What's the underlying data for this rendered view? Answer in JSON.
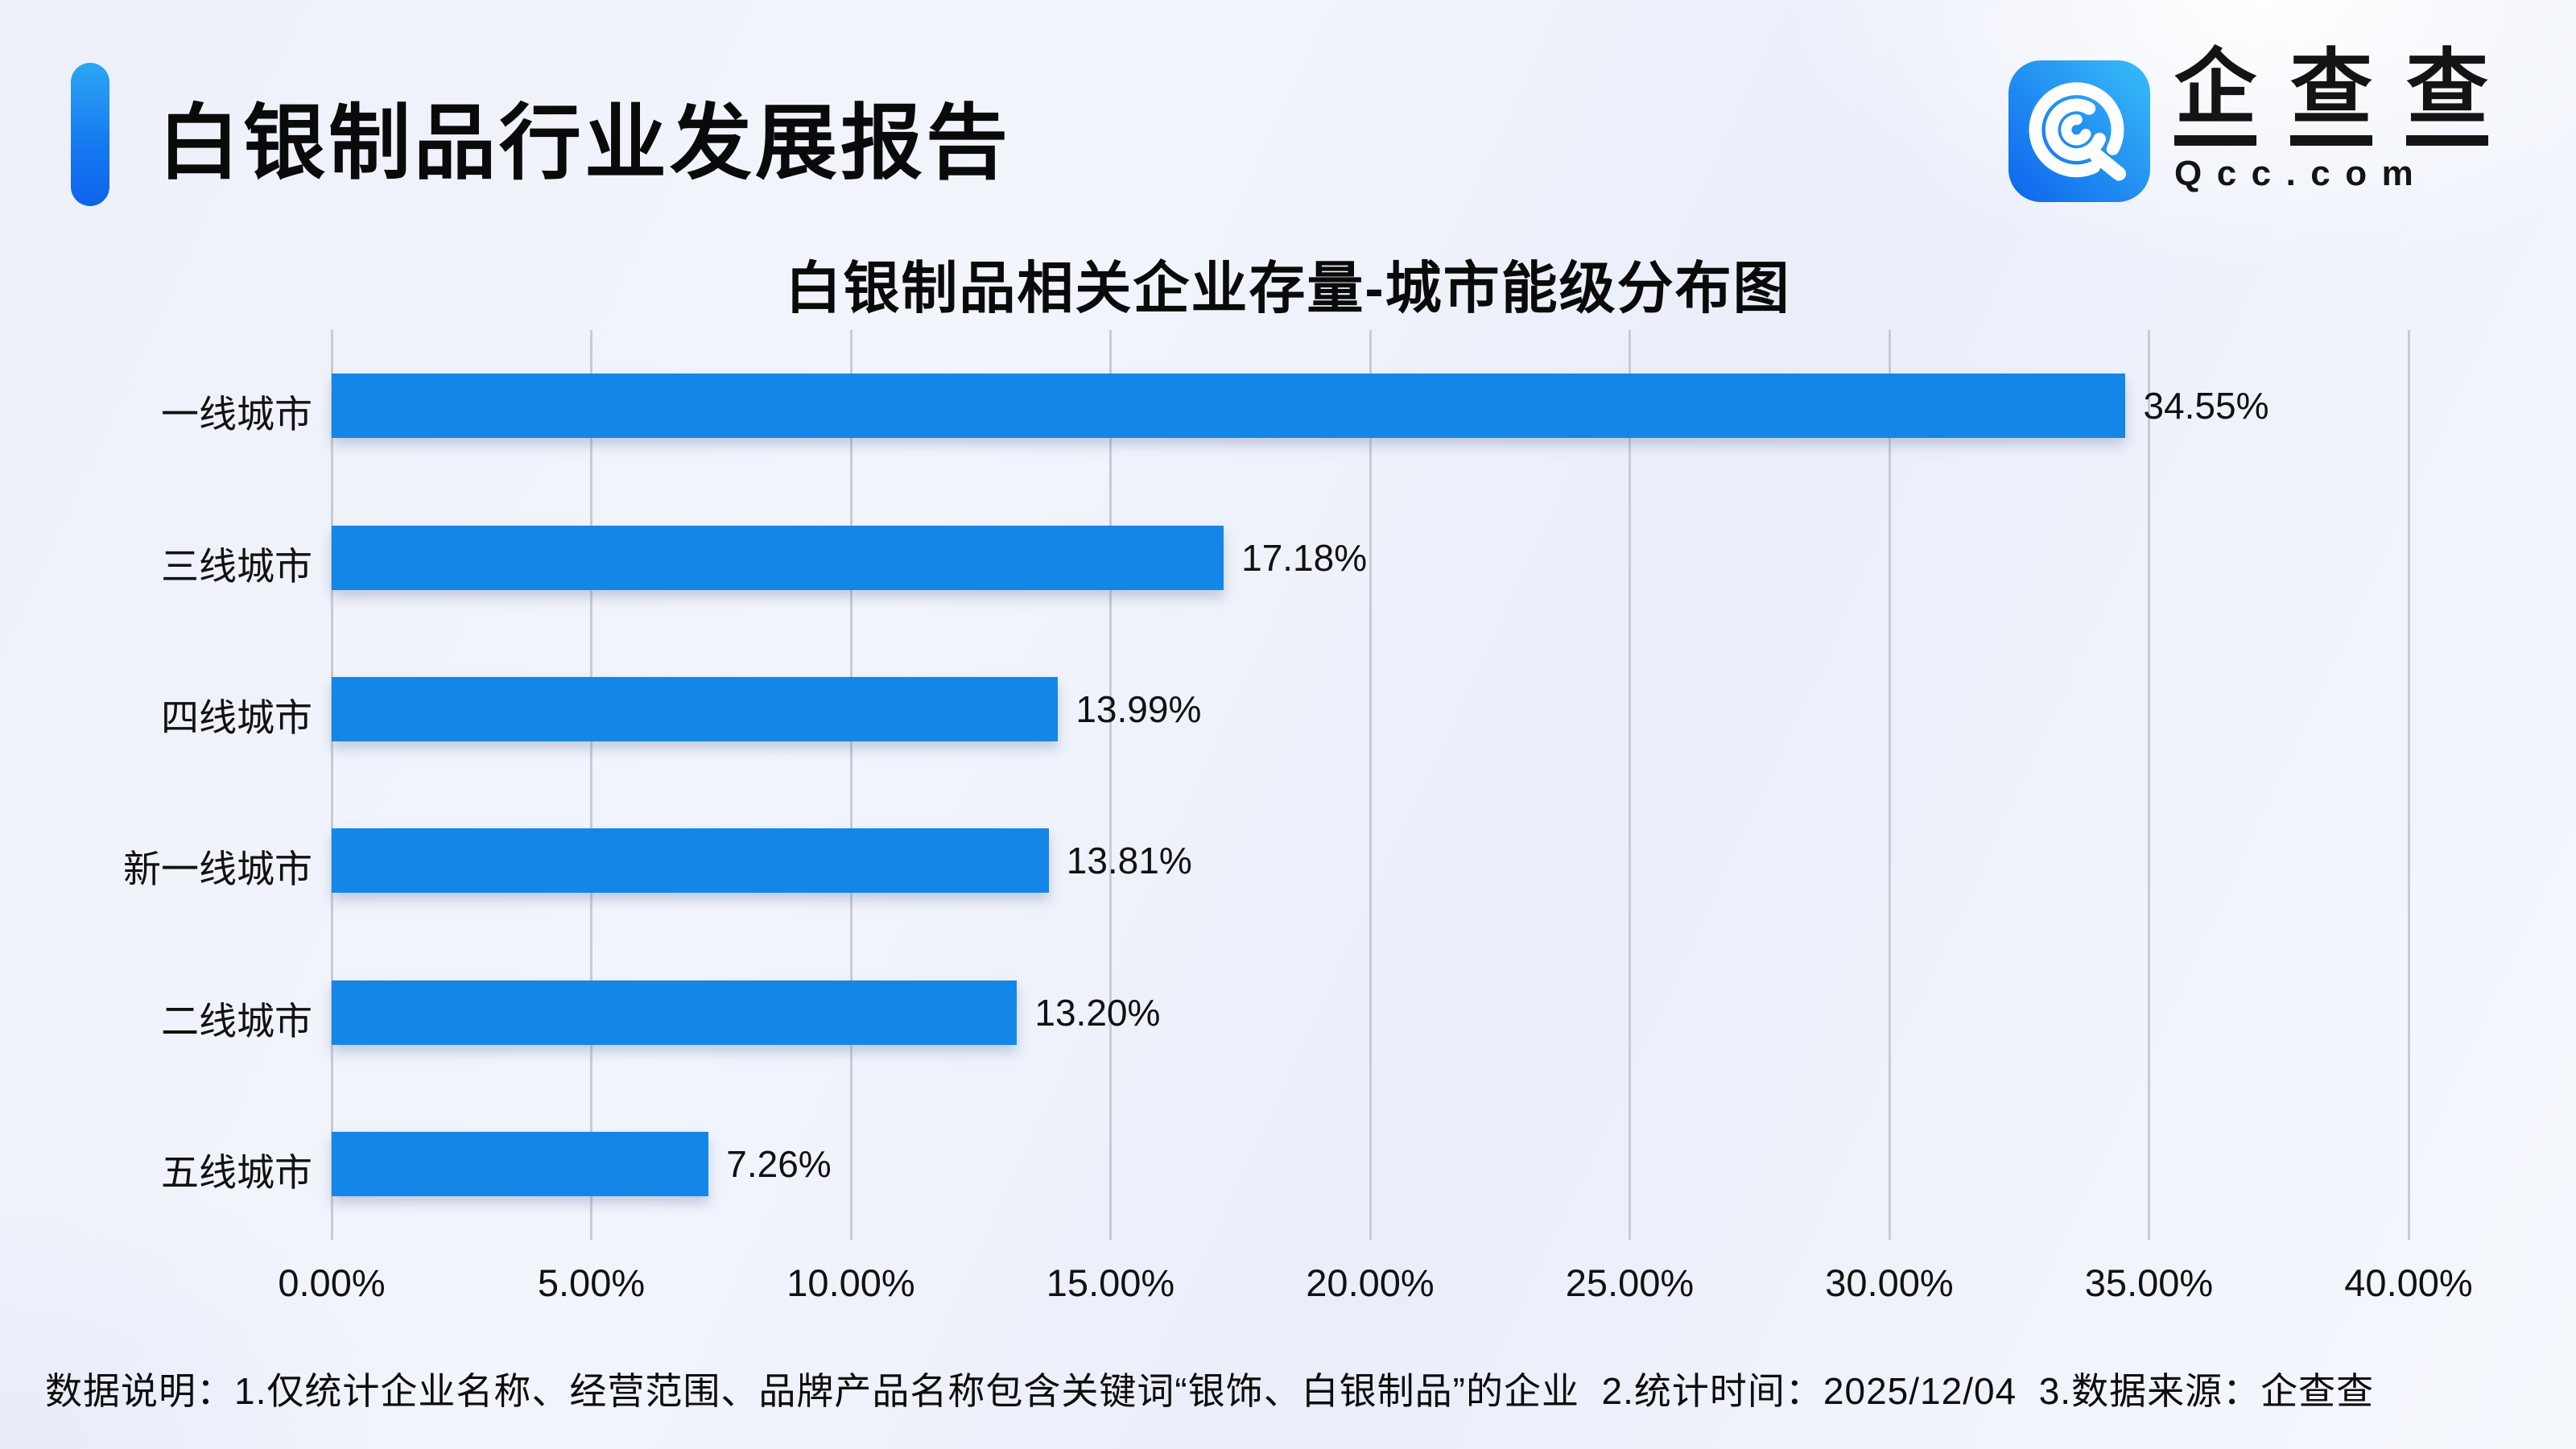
{
  "header": {
    "title": "白银制品行业发展报告"
  },
  "logo": {
    "icon": "qcc-app-icon",
    "brand_chars": [
      "企",
      "查",
      "查"
    ],
    "domain": "Qcc.com",
    "icon_gradient_top": "#38bdf8",
    "icon_gradient_bottom": "#0d64ec"
  },
  "chart_data": {
    "type": "bar",
    "orientation": "horizontal",
    "title": "白银制品相关企业存量-城市能级分布图",
    "xlabel": "",
    "ylabel": "",
    "categories": [
      "一线城市",
      "三线城市",
      "四线城市",
      "新一线城市",
      "二线城市",
      "五线城市"
    ],
    "values": [
      34.55,
      17.18,
      13.99,
      13.81,
      13.2,
      7.26
    ],
    "value_labels": [
      "34.55%",
      "17.18%",
      "13.99%",
      "13.81%",
      "13.20%",
      "7.26%"
    ],
    "xlim": [
      0,
      40
    ],
    "xtick_step": 5,
    "xtick_labels": [
      "0.00%",
      "5.00%",
      "10.00%",
      "15.00%",
      "20.00%",
      "25.00%",
      "30.00%",
      "35.00%",
      "40.00%"
    ],
    "bar_color": "#1486e8",
    "grid_color": "#c7cbd5",
    "grid": true,
    "legend": false
  },
  "footer": {
    "note": "数据说明：1.仅统计企业名称、经营范围、品牌产品名称包含关键词“银饰、白银制品”的企业  2.统计时间：2025/12/04  3.数据来源：企查查"
  }
}
